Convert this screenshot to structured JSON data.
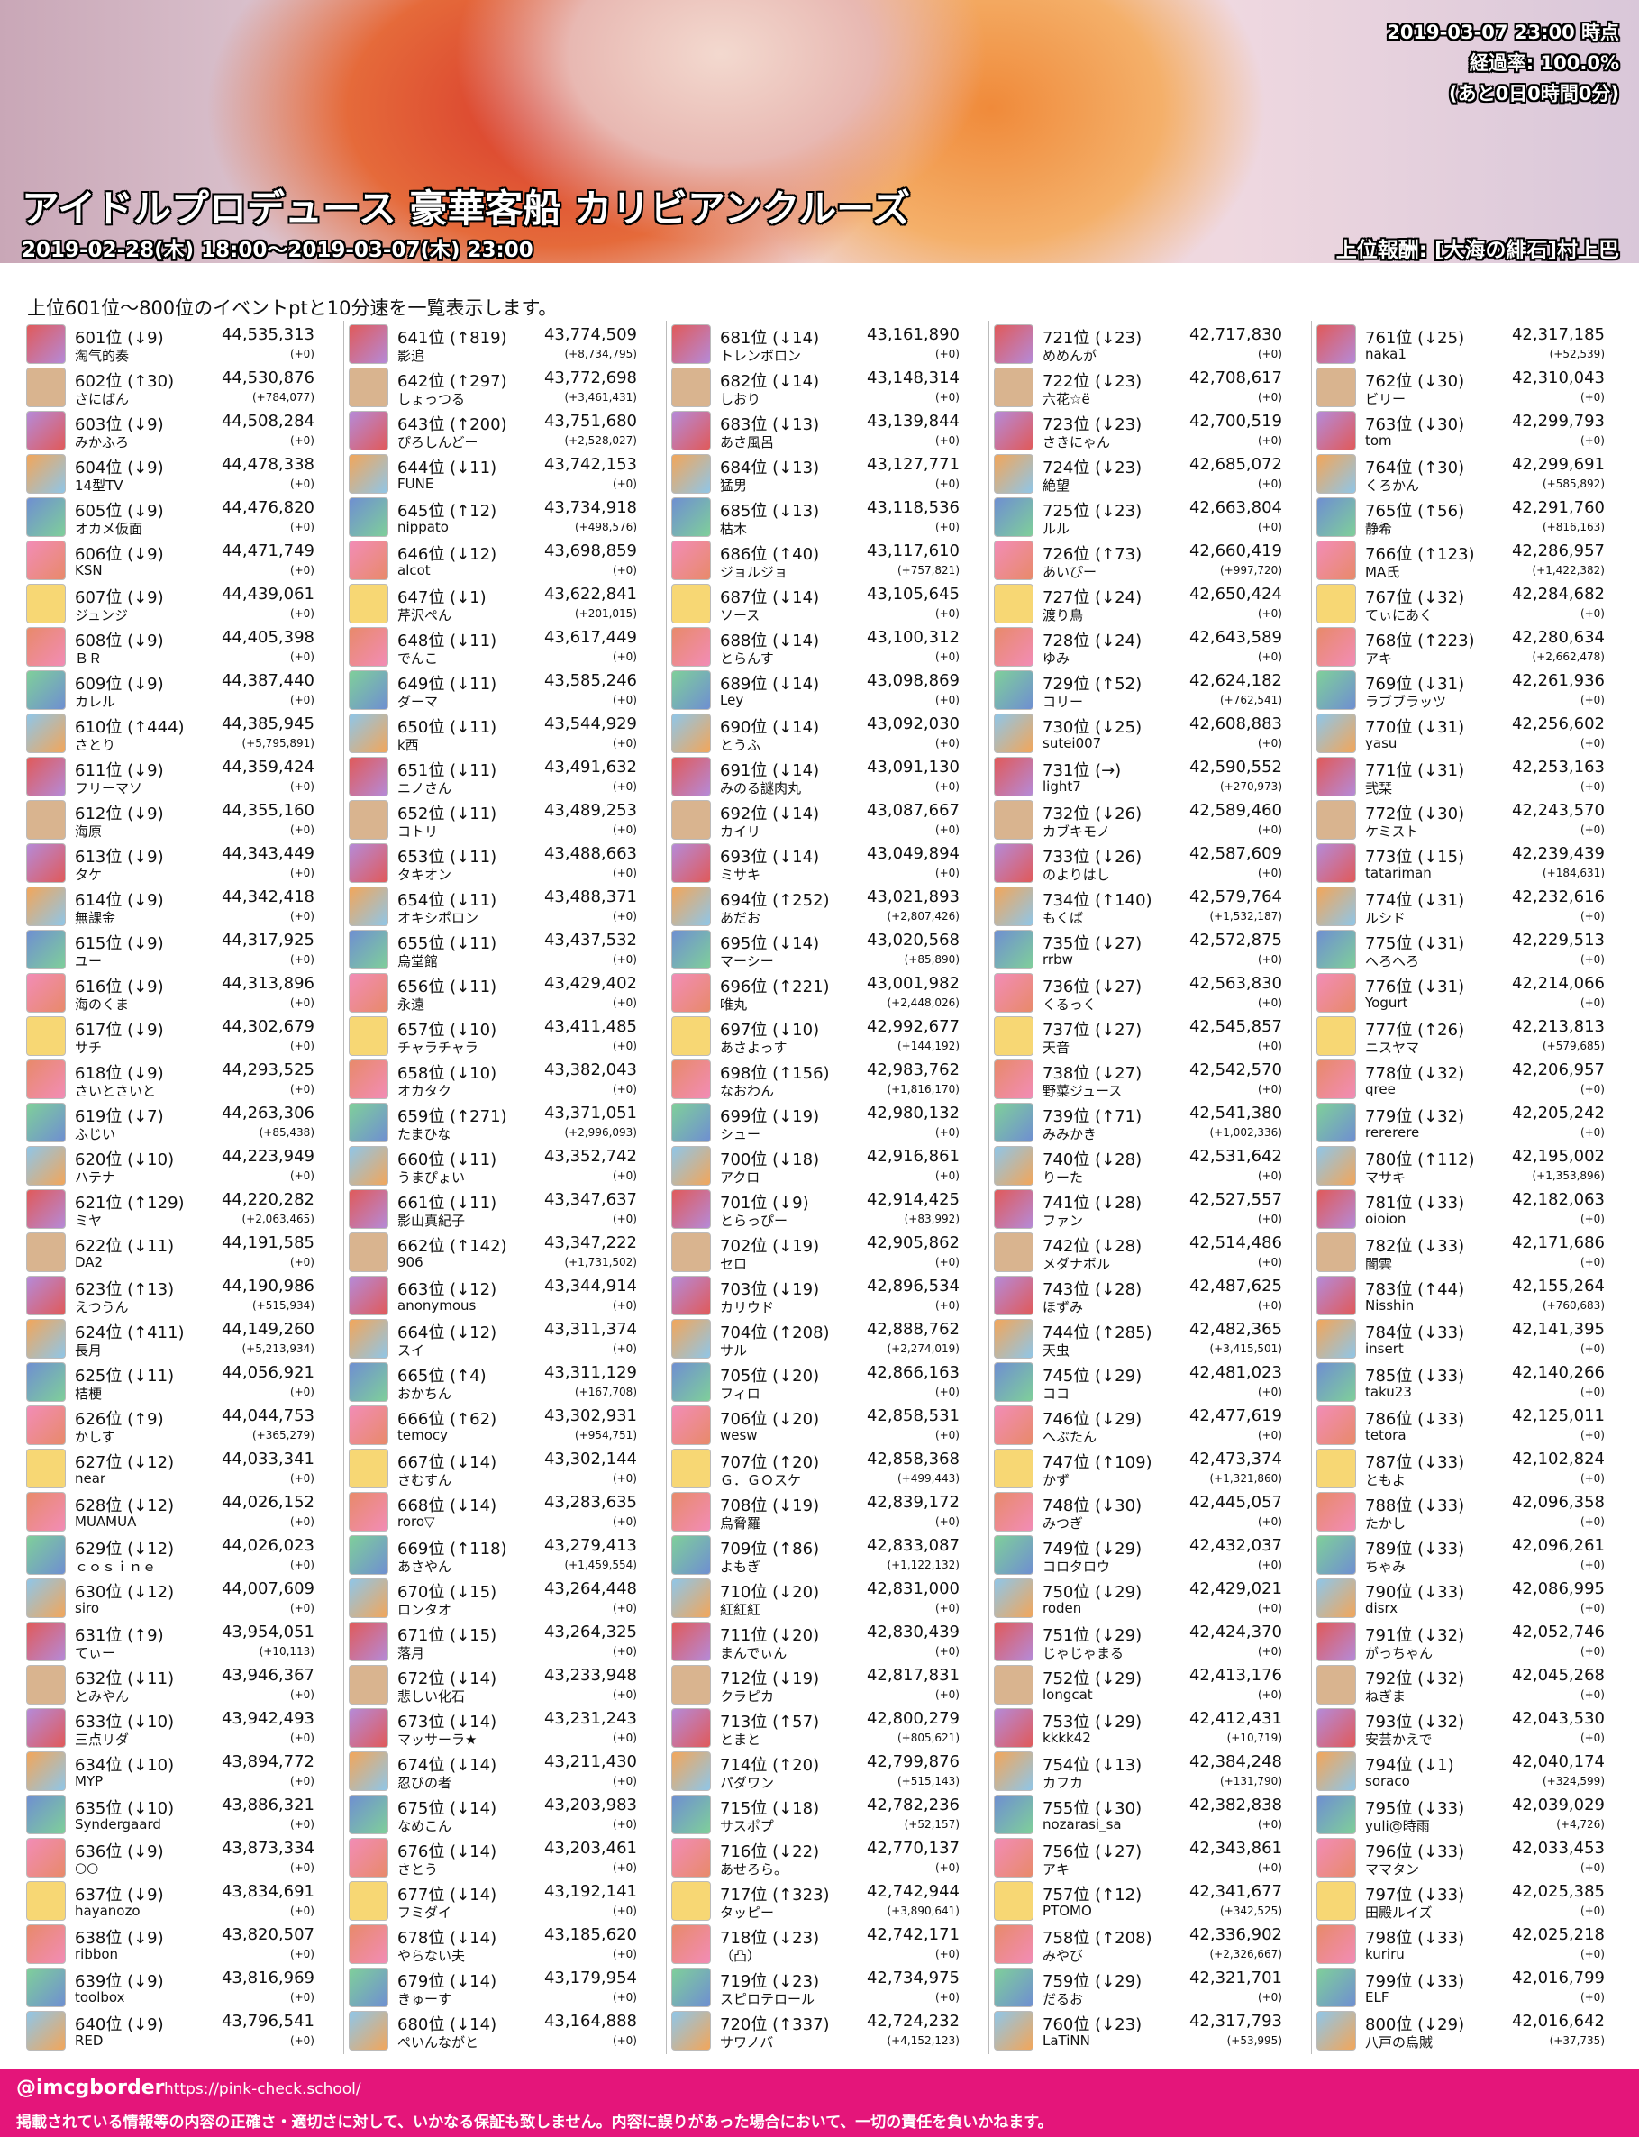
{
  "header": {
    "timestamp": "2019-03-07 23:00 時点",
    "progress": "経過率: 100.0%",
    "remaining": "(あと0日0時間0分)",
    "title": "アイドルプロデュース 豪華客船 カリビアンクルーズ",
    "period": "2019-02-28(木) 18:00～2019-03-07(木) 23:00",
    "reward": "上位報酬: [大海の緋石]村上巴"
  },
  "intro": "上位601位～800位のイベントptと10分速を一覧表示します。",
  "table": {
    "rows": [
      [
        "601位 (↓9)",
        "44,535,313",
        "淘气的奏",
        "(+0)"
      ],
      [
        "602位 (↑30)",
        "44,530,876",
        "さにばん",
        "(+784,077)"
      ],
      [
        "603位 (↓9)",
        "44,508,284",
        "みかふろ",
        "(+0)"
      ],
      [
        "604位 (↓9)",
        "44,478,338",
        "14型TV",
        "(+0)"
      ],
      [
        "605位 (↓9)",
        "44,476,820",
        "オカメ仮面",
        "(+0)"
      ],
      [
        "606位 (↓9)",
        "44,471,749",
        "KSN",
        "(+0)"
      ],
      [
        "607位 (↓9)",
        "44,439,061",
        "ジュンジ",
        "(+0)"
      ],
      [
        "608位 (↓9)",
        "44,405,398",
        "ＢＲ",
        "(+0)"
      ],
      [
        "609位 (↓9)",
        "44,387,440",
        "カレル",
        "(+0)"
      ],
      [
        "610位 (↑444)",
        "44,385,945",
        "さとり",
        "(+5,795,891)"
      ],
      [
        "611位 (↓9)",
        "44,359,424",
        "フリーマソ",
        "(+0)"
      ],
      [
        "612位 (↓9)",
        "44,355,160",
        "海原",
        "(+0)"
      ],
      [
        "613位 (↓9)",
        "44,343,449",
        "タケ",
        "(+0)"
      ],
      [
        "614位 (↓9)",
        "44,342,418",
        "無課金",
        "(+0)"
      ],
      [
        "615位 (↓9)",
        "44,317,925",
        "ユー",
        "(+0)"
      ],
      [
        "616位 (↓9)",
        "44,313,896",
        "海のくま",
        "(+0)"
      ],
      [
        "617位 (↓9)",
        "44,302,679",
        "サチ",
        "(+0)"
      ],
      [
        "618位 (↓9)",
        "44,293,525",
        "さいとさいと",
        "(+0)"
      ],
      [
        "619位 (↓7)",
        "44,263,306",
        "ふじい",
        "(+85,438)"
      ],
      [
        "620位 (↓10)",
        "44,223,949",
        "ハテナ",
        "(+0)"
      ],
      [
        "621位 (↑129)",
        "44,220,282",
        "ミヤ",
        "(+2,063,465)"
      ],
      [
        "622位 (↓11)",
        "44,191,585",
        "DA2",
        "(+0)"
      ],
      [
        "623位 (↑13)",
        "44,190,986",
        "えつうん",
        "(+515,934)"
      ],
      [
        "624位 (↑411)",
        "44,149,260",
        "長月",
        "(+5,213,934)"
      ],
      [
        "625位 (↓11)",
        "44,056,921",
        "桔梗",
        "(+0)"
      ],
      [
        "626位 (↑9)",
        "44,044,753",
        "かしす",
        "(+365,279)"
      ],
      [
        "627位 (↓12)",
        "44,033,341",
        "near",
        "(+0)"
      ],
      [
        "628位 (↓12)",
        "44,026,152",
        "MUAMUA",
        "(+0)"
      ],
      [
        "629位 (↓12)",
        "44,026,023",
        "ｃｏｓｉｎｅ",
        "(+0)"
      ],
      [
        "630位 (↓12)",
        "44,007,609",
        "siro",
        "(+0)"
      ],
      [
        "631位 (↑9)",
        "43,954,051",
        "てぃー",
        "(+10,113)"
      ],
      [
        "632位 (↓11)",
        "43,946,367",
        "とみやん",
        "(+0)"
      ],
      [
        "633位 (↓10)",
        "43,942,493",
        "三点リダ",
        "(+0)"
      ],
      [
        "634位 (↓10)",
        "43,894,772",
        "MYP",
        "(+0)"
      ],
      [
        "635位 (↓10)",
        "43,886,321",
        "Syndergaard",
        "(+0)"
      ],
      [
        "636位 (↓9)",
        "43,873,334",
        "○○",
        "(+0)"
      ],
      [
        "637位 (↓9)",
        "43,834,691",
        "hayanozo",
        "(+0)"
      ],
      [
        "638位 (↓9)",
        "43,820,507",
        "ribbon",
        "(+0)"
      ],
      [
        "639位 (↓9)",
        "43,816,969",
        "toolbox",
        "(+0)"
      ],
      [
        "640位 (↓9)",
        "43,796,541",
        "RED",
        "(+0)"
      ],
      [
        "641位 (↑819)",
        "43,774,509",
        "影追",
        "(+8,734,795)"
      ],
      [
        "642位 (↑297)",
        "43,772,698",
        "しょっつる",
        "(+3,461,431)"
      ],
      [
        "643位 (↑200)",
        "43,751,680",
        "ぴろしんどー",
        "(+2,528,027)"
      ],
      [
        "644位 (↓11)",
        "43,742,153",
        "FUNE",
        "(+0)"
      ],
      [
        "645位 (↑12)",
        "43,734,918",
        "nippato",
        "(+498,576)"
      ],
      [
        "646位 (↓12)",
        "43,698,859",
        "alcot",
        "(+0)"
      ],
      [
        "647位 (↓1)",
        "43,622,841",
        "芹沢ぺん",
        "(+201,015)"
      ],
      [
        "648位 (↓11)",
        "43,617,449",
        "でんこ",
        "(+0)"
      ],
      [
        "649位 (↓11)",
        "43,585,246",
        "ダーマ",
        "(+0)"
      ],
      [
        "650位 (↓11)",
        "43,544,929",
        "k西",
        "(+0)"
      ],
      [
        "651位 (↓11)",
        "43,491,632",
        "ニノさん",
        "(+0)"
      ],
      [
        "652位 (↓11)",
        "43,489,253",
        "コトリ",
        "(+0)"
      ],
      [
        "653位 (↓11)",
        "43,488,663",
        "タキオン",
        "(+0)"
      ],
      [
        "654位 (↓11)",
        "43,488,371",
        "オキシポロン",
        "(+0)"
      ],
      [
        "655位 (↓11)",
        "43,437,532",
        "烏堂館",
        "(+0)"
      ],
      [
        "656位 (↓11)",
        "43,429,402",
        "永遠",
        "(+0)"
      ],
      [
        "657位 (↓10)",
        "43,411,485",
        "チャラチャラ",
        "(+0)"
      ],
      [
        "658位 (↓10)",
        "43,382,043",
        "オカタク",
        "(+0)"
      ],
      [
        "659位 (↑271)",
        "43,371,051",
        "たまひな",
        "(+2,996,093)"
      ],
      [
        "660位 (↓11)",
        "43,352,742",
        "うまぴょい",
        "(+0)"
      ],
      [
        "661位 (↓11)",
        "43,347,637",
        "影山真紀子",
        "(+0)"
      ],
      [
        "662位 (↑142)",
        "43,347,222",
        "906",
        "(+1,731,502)"
      ],
      [
        "663位 (↓12)",
        "43,344,914",
        "anonymous",
        "(+0)"
      ],
      [
        "664位 (↓12)",
        "43,311,374",
        "スイ",
        "(+0)"
      ],
      [
        "665位 (↑4)",
        "43,311,129",
        "おかちん",
        "(+167,708)"
      ],
      [
        "666位 (↑62)",
        "43,302,931",
        "temocy",
        "(+954,751)"
      ],
      [
        "667位 (↓14)",
        "43,302,144",
        "さむすん",
        "(+0)"
      ],
      [
        "668位 (↓14)",
        "43,283,635",
        "roro▽",
        "(+0)"
      ],
      [
        "669位 (↑118)",
        "43,279,413",
        "あさやん",
        "(+1,459,554)"
      ],
      [
        "670位 (↓15)",
        "43,264,448",
        "ロンタオ",
        "(+0)"
      ],
      [
        "671位 (↓15)",
        "43,264,325",
        "落月",
        "(+0)"
      ],
      [
        "672位 (↓14)",
        "43,233,948",
        "悲しい化石",
        "(+0)"
      ],
      [
        "673位 (↓14)",
        "43,231,243",
        "マッサーラ★",
        "(+0)"
      ],
      [
        "674位 (↓14)",
        "43,211,430",
        "忍びの者",
        "(+0)"
      ],
      [
        "675位 (↓14)",
        "43,203,983",
        "なめこん",
        "(+0)"
      ],
      [
        "676位 (↓14)",
        "43,203,461",
        "さとう",
        "(+0)"
      ],
      [
        "677位 (↓14)",
        "43,192,141",
        "フミダイ",
        "(+0)"
      ],
      [
        "678位 (↓14)",
        "43,185,620",
        "やらない夫",
        "(+0)"
      ],
      [
        "679位 (↓14)",
        "43,179,954",
        "きゅーす",
        "(+0)"
      ],
      [
        "680位 (↓14)",
        "43,164,888",
        "ぺいんながと",
        "(+0)"
      ],
      [
        "681位 (↓14)",
        "43,161,890",
        "トレンボロン",
        "(+0)"
      ],
      [
        "682位 (↓14)",
        "43,148,314",
        "しおり",
        "(+0)"
      ],
      [
        "683位 (↓13)",
        "43,139,844",
        "あさ風呂",
        "(+0)"
      ],
      [
        "684位 (↓13)",
        "43,127,771",
        "猛男",
        "(+0)"
      ],
      [
        "685位 (↓13)",
        "43,118,536",
        "枯木",
        "(+0)"
      ],
      [
        "686位 (↑40)",
        "43,117,610",
        "ジョルジョ",
        "(+757,821)"
      ],
      [
        "687位 (↓14)",
        "43,105,645",
        "ソース",
        "(+0)"
      ],
      [
        "688位 (↓14)",
        "43,100,312",
        "とらんす",
        "(+0)"
      ],
      [
        "689位 (↓14)",
        "43,098,869",
        "Ley",
        "(+0)"
      ],
      [
        "690位 (↓14)",
        "43,092,030",
        "とうふ",
        "(+0)"
      ],
      [
        "691位 (↓14)",
        "43,091,130",
        "みのる謎肉丸",
        "(+0)"
      ],
      [
        "692位 (↓14)",
        "43,087,667",
        "カイリ",
        "(+0)"
      ],
      [
        "693位 (↓14)",
        "43,049,894",
        "ミサキ",
        "(+0)"
      ],
      [
        "694位 (↑252)",
        "43,021,893",
        "あだお",
        "(+2,807,426)"
      ],
      [
        "695位 (↓14)",
        "43,020,568",
        "マーシー",
        "(+85,890)"
      ],
      [
        "696位 (↑221)",
        "43,001,982",
        "唯丸",
        "(+2,448,026)"
      ],
      [
        "697位 (↓10)",
        "42,992,677",
        "あさよっす",
        "(+144,192)"
      ],
      [
        "698位 (↑156)",
        "42,983,762",
        "なおわん",
        "(+1,816,170)"
      ],
      [
        "699位 (↓19)",
        "42,980,132",
        "シュー",
        "(+0)"
      ],
      [
        "700位 (↓18)",
        "42,916,861",
        "アクロ",
        "(+0)"
      ],
      [
        "701位 (↓9)",
        "42,914,425",
        "とらっぴー",
        "(+83,992)"
      ],
      [
        "702位 (↓19)",
        "42,905,862",
        "セロ",
        "(+0)"
      ],
      [
        "703位 (↓19)",
        "42,896,534",
        "カリウド",
        "(+0)"
      ],
      [
        "704位 (↑208)",
        "42,888,762",
        "サル",
        "(+2,274,019)"
      ],
      [
        "705位 (↓20)",
        "42,866,163",
        "フィロ",
        "(+0)"
      ],
      [
        "706位 (↓20)",
        "42,858,531",
        "wesw",
        "(+0)"
      ],
      [
        "707位 (↑20)",
        "42,858,368",
        "Ｇ．ＧＯスケ",
        "(+499,443)"
      ],
      [
        "708位 (↓19)",
        "42,839,172",
        "烏脅羅",
        "(+0)"
      ],
      [
        "709位 (↑86)",
        "42,833,087",
        "よもぎ",
        "(+1,122,132)"
      ],
      [
        "710位 (↓20)",
        "42,831,000",
        "紅紅紅",
        "(+0)"
      ],
      [
        "711位 (↓20)",
        "42,830,439",
        "まんでぃん",
        "(+0)"
      ],
      [
        "712位 (↓19)",
        "42,817,831",
        "クラピカ",
        "(+0)"
      ],
      [
        "713位 (↑57)",
        "42,800,279",
        "とまと",
        "(+805,621)"
      ],
      [
        "714位 (↑20)",
        "42,799,876",
        "パダワン",
        "(+515,143)"
      ],
      [
        "715位 (↓18)",
        "42,782,236",
        "サスポプ",
        "(+52,157)"
      ],
      [
        "716位 (↓22)",
        "42,770,137",
        "あせろら。",
        "(+0)"
      ],
      [
        "717位 (↑323)",
        "42,742,944",
        "タッピー",
        "(+3,890,641)"
      ],
      [
        "718位 (↓23)",
        "42,742,171",
        "（凸）",
        "(+0)"
      ],
      [
        "719位 (↓23)",
        "42,734,975",
        "スピロテロール",
        "(+0)"
      ],
      [
        "720位 (↑337)",
        "42,724,232",
        "サワノバ",
        "(+4,152,123)"
      ],
      [
        "721位 (↓23)",
        "42,717,830",
        "めめんが",
        "(+0)"
      ],
      [
        "722位 (↓23)",
        "42,708,617",
        "六花☆ё",
        "(+0)"
      ],
      [
        "723位 (↓23)",
        "42,700,519",
        "さきにゃん",
        "(+0)"
      ],
      [
        "724位 (↓23)",
        "42,685,072",
        "絶望",
        "(+0)"
      ],
      [
        "725位 (↓23)",
        "42,663,804",
        "ルル",
        "(+0)"
      ],
      [
        "726位 (↑73)",
        "42,660,419",
        "あいぴー",
        "(+997,720)"
      ],
      [
        "727位 (↓24)",
        "42,650,424",
        "渡り鳥",
        "(+0)"
      ],
      [
        "728位 (↓24)",
        "42,643,589",
        "ゆみ",
        "(+0)"
      ],
      [
        "729位 (↑52)",
        "42,624,182",
        "コリー",
        "(+762,541)"
      ],
      [
        "730位 (↓25)",
        "42,608,883",
        "sutei007",
        "(+0)"
      ],
      [
        "731位 (→)",
        "42,590,552",
        "light7",
        "(+270,973)"
      ],
      [
        "732位 (↓26)",
        "42,589,460",
        "カブキモノ",
        "(+0)"
      ],
      [
        "733位 (↓26)",
        "42,587,609",
        "のよりはし",
        "(+0)"
      ],
      [
        "734位 (↑140)",
        "42,579,764",
        "もくば",
        "(+1,532,187)"
      ],
      [
        "735位 (↓27)",
        "42,572,875",
        "rrbw",
        "(+0)"
      ],
      [
        "736位 (↓27)",
        "42,563,830",
        "くるっく",
        "(+0)"
      ],
      [
        "737位 (↓27)",
        "42,545,857",
        "天音",
        "(+0)"
      ],
      [
        "738位 (↓27)",
        "42,542,570",
        "野菜ジュース",
        "(+0)"
      ],
      [
        "739位 (↑71)",
        "42,541,380",
        "みみかき",
        "(+1,002,336)"
      ],
      [
        "740位 (↓28)",
        "42,531,642",
        "りーた",
        "(+0)"
      ],
      [
        "741位 (↓28)",
        "42,527,557",
        "ファン",
        "(+0)"
      ],
      [
        "742位 (↓28)",
        "42,514,486",
        "メダナボル",
        "(+0)"
      ],
      [
        "743位 (↓28)",
        "42,487,625",
        "ほずみ",
        "(+0)"
      ],
      [
        "744位 (↑285)",
        "42,482,365",
        "天虫",
        "(+3,415,501)"
      ],
      [
        "745位 (↓29)",
        "42,481,023",
        "ココ",
        "(+0)"
      ],
      [
        "746位 (↓29)",
        "42,477,619",
        "へぶたん",
        "(+0)"
      ],
      [
        "747位 (↑109)",
        "42,473,374",
        "かず",
        "(+1,321,860)"
      ],
      [
        "748位 (↓30)",
        "42,445,057",
        "みつぎ",
        "(+0)"
      ],
      [
        "749位 (↓29)",
        "42,432,037",
        "コロタロウ",
        "(+0)"
      ],
      [
        "750位 (↓29)",
        "42,429,021",
        "roden",
        "(+0)"
      ],
      [
        "751位 (↓29)",
        "42,424,370",
        "じゃじゃまる",
        "(+0)"
      ],
      [
        "752位 (↓29)",
        "42,413,176",
        "longcat",
        "(+0)"
      ],
      [
        "753位 (↓29)",
        "42,412,431",
        "kkkk42",
        "(+10,719)"
      ],
      [
        "754位 (↓13)",
        "42,384,248",
        "カフカ",
        "(+131,790)"
      ],
      [
        "755位 (↓30)",
        "42,382,838",
        "nozarasi_sa",
        "(+0)"
      ],
      [
        "756位 (↓27)",
        "42,343,861",
        "アキ",
        "(+0)"
      ],
      [
        "757位 (↑12)",
        "42,341,677",
        "PTOMO",
        "(+342,525)"
      ],
      [
        "758位 (↑208)",
        "42,336,902",
        "みやび",
        "(+2,326,667)"
      ],
      [
        "759位 (↓29)",
        "42,321,701",
        "だるお",
        "(+0)"
      ],
      [
        "760位 (↓23)",
        "42,317,793",
        "LaTiNN",
        "(+53,995)"
      ],
      [
        "761位 (↓25)",
        "42,317,185",
        "naka1",
        "(+52,539)"
      ],
      [
        "762位 (↓30)",
        "42,310,043",
        "ビリー",
        "(+0)"
      ],
      [
        "763位 (↓30)",
        "42,299,793",
        "tom",
        "(+0)"
      ],
      [
        "764位 (↑30)",
        "42,299,691",
        "くろかん",
        "(+585,892)"
      ],
      [
        "765位 (↑56)",
        "42,291,760",
        "静希",
        "(+816,163)"
      ],
      [
        "766位 (↑123)",
        "42,286,957",
        "MA氏",
        "(+1,422,382)"
      ],
      [
        "767位 (↓32)",
        "42,284,682",
        "てぃにあく",
        "(+0)"
      ],
      [
        "768位 (↑223)",
        "42,280,634",
        "アキ",
        "(+2,662,478)"
      ],
      [
        "769位 (↓31)",
        "42,261,936",
        "ラブブラッツ",
        "(+0)"
      ],
      [
        "770位 (↓31)",
        "42,256,602",
        "yasu",
        "(+0)"
      ],
      [
        "771位 (↓31)",
        "42,253,163",
        "弐琹",
        "(+0)"
      ],
      [
        "772位 (↓30)",
        "42,243,570",
        "ケミスト",
        "(+0)"
      ],
      [
        "773位 (↓15)",
        "42,239,439",
        "tatariman",
        "(+184,631)"
      ],
      [
        "774位 (↓31)",
        "42,232,616",
        "ルシド",
        "(+0)"
      ],
      [
        "775位 (↓31)",
        "42,229,513",
        "へろへろ",
        "(+0)"
      ],
      [
        "776位 (↓31)",
        "42,214,066",
        "Yogurt",
        "(+0)"
      ],
      [
        "777位 (↑26)",
        "42,213,813",
        "ニスヤマ",
        "(+579,685)"
      ],
      [
        "778位 (↓32)",
        "42,206,957",
        "qree",
        "(+0)"
      ],
      [
        "779位 (↓32)",
        "42,205,242",
        "rererere",
        "(+0)"
      ],
      [
        "780位 (↑112)",
        "42,195,002",
        "マサキ",
        "(+1,353,896)"
      ],
      [
        "781位 (↓33)",
        "42,182,063",
        "oioion",
        "(+0)"
      ],
      [
        "782位 (↓33)",
        "42,171,686",
        "闇雲",
        "(+0)"
      ],
      [
        "783位 (↑44)",
        "42,155,264",
        "Nisshin",
        "(+760,683)"
      ],
      [
        "784位 (↓33)",
        "42,141,395",
        "insert",
        "(+0)"
      ],
      [
        "785位 (↓33)",
        "42,140,266",
        "taku23",
        "(+0)"
      ],
      [
        "786位 (↓33)",
        "42,125,011",
        "tetora",
        "(+0)"
      ],
      [
        "787位 (↓33)",
        "42,102,824",
        "ともよ",
        "(+0)"
      ],
      [
        "788位 (↓33)",
        "42,096,358",
        "たかし",
        "(+0)"
      ],
      [
        "789位 (↓33)",
        "42,096,261",
        "ちゃみ",
        "(+0)"
      ],
      [
        "790位 (↓33)",
        "42,086,995",
        "disrx",
        "(+0)"
      ],
      [
        "791位 (↓32)",
        "42,052,746",
        "がっちゃん",
        "(+0)"
      ],
      [
        "792位 (↓32)",
        "42,045,268",
        "ねぎま",
        "(+0)"
      ],
      [
        "793位 (↓32)",
        "42,043,530",
        "安芸かえで",
        "(+0)"
      ],
      [
        "794位 (↓1)",
        "42,040,174",
        "soraco",
        "(+324,599)"
      ],
      [
        "795位 (↓33)",
        "42,039,029",
        "yuli@時雨",
        "(+4,726)"
      ],
      [
        "796位 (↓33)",
        "42,033,453",
        "ママタン",
        "(+0)"
      ],
      [
        "797位 (↓33)",
        "42,025,385",
        "田殿ルイズ",
        "(+0)"
      ],
      [
        "798位 (↓33)",
        "42,025,218",
        "kuriru",
        "(+0)"
      ],
      [
        "799位 (↓33)",
        "42,016,799",
        "ELF",
        "(+0)"
      ],
      [
        "800位 (↓29)",
        "42,016,642",
        "八戸の烏賊",
        "(+37,735)"
      ]
    ]
  },
  "footer": {
    "account": "@imcgborder",
    "url": "https://pink-check.school/",
    "disclaimer": "掲載されている情報等の内容の正確さ・適切さに対して、いかなる保証も致しません。内容に誤りがあった場合において、一切の責任を負いかねます。"
  }
}
